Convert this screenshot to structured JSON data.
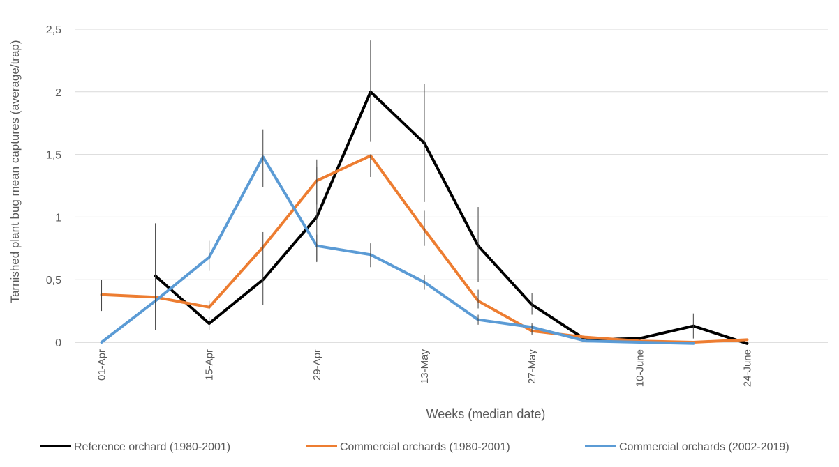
{
  "chart_data": {
    "type": "line",
    "title": "",
    "xlabel": "Weeks (median date)",
    "ylabel": "Tarnished plant bug mean captures (average/trap)",
    "ylim": [
      0,
      2.5
    ],
    "yticks": [
      "0",
      "0,5",
      "1",
      "1,5",
      "2",
      "2,5"
    ],
    "ytick_values": [
      0,
      0.5,
      1,
      1.5,
      2,
      2.5
    ],
    "week_count": 14,
    "xtick_labels": [
      {
        "week": 0,
        "label": "01-Apr"
      },
      {
        "week": 2,
        "label": "15-Apr"
      },
      {
        "week": 4,
        "label": "29-Apr"
      },
      {
        "week": 6,
        "label": "13-May"
      },
      {
        "week": 8,
        "label": "27-May"
      },
      {
        "week": 10,
        "label": "10-June"
      },
      {
        "week": 12,
        "label": "24-June"
      }
    ],
    "grid": true,
    "legend_position": "bottom",
    "series": [
      {
        "name": "Reference orchard (1980-2001)",
        "color": "#000000",
        "points": [
          {
            "w": 1,
            "y": 0.53,
            "err": [
              0.1,
              0.95
            ]
          },
          {
            "w": 2,
            "y": 0.15,
            "err": [
              0.1,
              0.2
            ]
          },
          {
            "w": 3,
            "y": 0.5,
            "err": [
              0.3,
              0.88
            ]
          },
          {
            "w": 4,
            "y": 1.0,
            "err": [
              0.65,
              1.4
            ]
          },
          {
            "w": 5,
            "y": 2.0,
            "err": [
              1.6,
              2.41
            ]
          },
          {
            "w": 6,
            "y": 1.59,
            "err": [
              1.12,
              2.06
            ]
          },
          {
            "w": 7,
            "y": 0.77,
            "err": [
              0.48,
              1.08
            ]
          },
          {
            "w": 8,
            "y": 0.3,
            "err": [
              0.22,
              0.39
            ]
          },
          {
            "w": 9,
            "y": 0.02
          },
          {
            "w": 10,
            "y": 0.03
          },
          {
            "w": 11,
            "y": 0.13,
            "err": [
              0.03,
              0.23
            ]
          },
          {
            "w": 12,
            "y": -0.01
          }
        ]
      },
      {
        "name": "Commercial orchards (1980-2001)",
        "color": "#ED7D31",
        "points": [
          {
            "w": 0,
            "y": 0.38,
            "err": [
              0.25,
              0.5
            ]
          },
          {
            "w": 1,
            "y": 0.36
          },
          {
            "w": 2,
            "y": 0.28,
            "err": [
              0.26,
              0.33
            ]
          },
          {
            "w": 3,
            "y": 0.76
          },
          {
            "w": 4,
            "y": 1.29,
            "err": [
              1.1,
              1.46
            ]
          },
          {
            "w": 5,
            "y": 1.49,
            "err": [
              1.32,
              1.5
            ]
          },
          {
            "w": 6,
            "y": 0.9,
            "err": [
              0.77,
              1.05
            ]
          },
          {
            "w": 7,
            "y": 0.33,
            "err": [
              0.27,
              0.42
            ]
          },
          {
            "w": 8,
            "y": 0.09,
            "err": [
              0.06,
              0.14
            ]
          },
          {
            "w": 9,
            "y": 0.04
          },
          {
            "w": 10,
            "y": 0.01
          },
          {
            "w": 11,
            "y": 0.0
          },
          {
            "w": 12,
            "y": 0.02
          }
        ]
      },
      {
        "name": "Commercial orchards (2002-2019)",
        "color": "#5B9BD5",
        "points": [
          {
            "w": 0,
            "y": 0.0
          },
          {
            "w": 1,
            "y": 0.33
          },
          {
            "w": 2,
            "y": 0.68,
            "err": [
              0.57,
              0.81
            ]
          },
          {
            "w": 3,
            "y": 1.48,
            "err": [
              1.24,
              1.7
            ]
          },
          {
            "w": 4,
            "y": 0.77,
            "err": [
              0.64,
              0.86
            ]
          },
          {
            "w": 5,
            "y": 0.7,
            "err": [
              0.6,
              0.79
            ]
          },
          {
            "w": 6,
            "y": 0.48,
            "err": [
              0.42,
              0.54
            ]
          },
          {
            "w": 7,
            "y": 0.18,
            "err": [
              0.14,
              0.22
            ]
          },
          {
            "w": 8,
            "y": 0.12,
            "err": [
              0.07,
              0.15
            ]
          },
          {
            "w": 9,
            "y": 0.01
          },
          {
            "w": 10,
            "y": 0.0
          },
          {
            "w": 11,
            "y": -0.01
          }
        ]
      }
    ]
  }
}
